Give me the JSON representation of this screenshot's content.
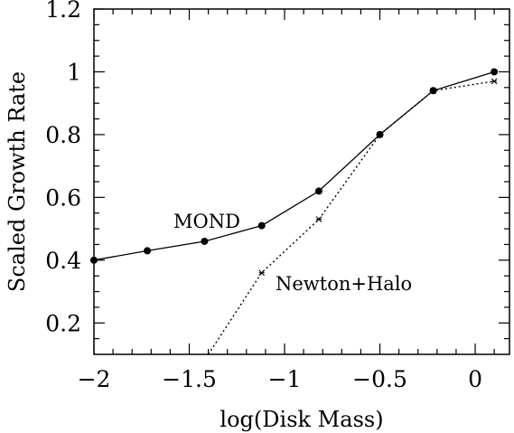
{
  "chart_data": {
    "type": "line",
    "title": "",
    "xlabel": "log(Disk Mass)",
    "ylabel": "Scaled Growth Rate",
    "xlim": [
      -2.0,
      0.18
    ],
    "ylim": [
      0.1,
      1.2
    ],
    "xticks": [
      -2,
      -1.5,
      -1,
      -0.5,
      0
    ],
    "xtick_labels": [
      "−2",
      "−1.5",
      "−1",
      "−0.5",
      "0"
    ],
    "yticks": [
      0.2,
      0.4,
      0.6,
      0.8,
      1,
      1.2
    ],
    "ytick_labels": [
      "0.2",
      "0.4",
      "0.6",
      "0.8",
      "1",
      "1.2"
    ],
    "grid": false,
    "legend": "none",
    "series": [
      {
        "name": "MOND",
        "line_style": "solid",
        "marker": "filled-circle",
        "x": [
          -2.0,
          -1.72,
          -1.42,
          -1.12,
          -0.82,
          -0.5,
          -0.22,
          0.1
        ],
        "y": [
          0.4,
          0.43,
          0.46,
          0.51,
          0.62,
          0.8,
          0.94,
          1.0
        ]
      },
      {
        "name": "Newton+Halo",
        "line_style": "dotted",
        "marker": "small-star",
        "x": [
          -1.4,
          -1.12,
          -0.82,
          -0.5,
          -0.22,
          0.1
        ],
        "y": [
          0.1,
          0.36,
          0.53,
          0.8,
          0.94,
          0.97
        ],
        "marked_points": [
          false,
          true,
          true,
          true,
          true,
          true
        ]
      }
    ],
    "annotations": [
      {
        "text": "MOND",
        "series": "MOND"
      },
      {
        "text": "Newton+Halo",
        "series": "Newton+Halo"
      }
    ]
  }
}
